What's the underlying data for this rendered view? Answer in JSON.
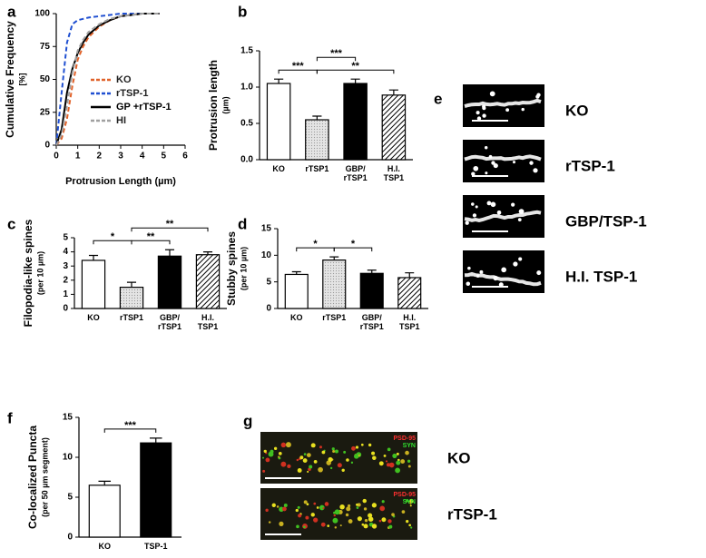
{
  "chart_data": [
    {
      "type": "line",
      "label": "a",
      "x": [
        0,
        0.25,
        0.5,
        0.75,
        1,
        1.25,
        1.5,
        2,
        2.5,
        3,
        3.5,
        4,
        4.8
      ],
      "series": [
        {
          "name": "KO",
          "color": "#e0622a",
          "dash": true,
          "values": [
            0,
            5,
            20,
            45,
            65,
            75,
            82,
            90,
            95,
            98,
            99,
            100,
            100
          ]
        },
        {
          "name": "rTSP-1",
          "color": "#1f4fd1",
          "dash": true,
          "values": [
            0,
            40,
            78,
            92,
            95,
            96,
            97,
            98,
            99,
            100,
            100,
            100,
            100
          ]
        },
        {
          "name": "GP +rTSP-1",
          "color": "#000000",
          "dash": false,
          "values": [
            0,
            12,
            40,
            58,
            70,
            78,
            84,
            91,
            95,
            98,
            99,
            100,
            100
          ]
        },
        {
          "name": "HI",
          "color": "#a0a0a0",
          "dash": true,
          "values": [
            0,
            8,
            30,
            55,
            72,
            80,
            86,
            92,
            96,
            98,
            99,
            100,
            100
          ]
        }
      ],
      "xlabel": "Protrusion Length (µm)",
      "ylabel": "Cumulative Frequency",
      "ylabel_unit": "[%]",
      "xlim": [
        0,
        6
      ],
      "xticks": [
        0,
        1,
        2,
        3,
        4,
        5,
        6
      ],
      "ylim": [
        0,
        100
      ],
      "yticks": [
        0,
        25,
        50,
        75,
        100
      ]
    },
    {
      "type": "bar",
      "label": "b",
      "categories": [
        "KO",
        "rTSP1",
        "GBP/\nrTSP1",
        "H.I.\nTSP1"
      ],
      "values": [
        1.05,
        0.55,
        1.05,
        0.89
      ],
      "errors": [
        0.06,
        0.05,
        0.06,
        0.07
      ],
      "fills": [
        "white",
        "dots",
        "black",
        "hatch"
      ],
      "ylabel": "Protrusion length",
      "ylabel_unit": "(µm)",
      "ylim": [
        0,
        1.5
      ],
      "yticks": [
        {
          "value": 0,
          "label": "0.0"
        },
        0.5,
        {
          "value": 1,
          "label": "1.0"
        },
        1.5
      ],
      "significance": [
        {
          "from": 0,
          "to": 1,
          "text": "***"
        },
        {
          "from": 1,
          "to": 3,
          "text": "**"
        },
        {
          "from": 1,
          "to": 2,
          "text": "***"
        }
      ]
    },
    {
      "type": "bar",
      "label": "c",
      "categories": [
        "KO",
        "rTSP1",
        "GBP/\nrTSP1",
        "H.I.\nTSP1"
      ],
      "values": [
        3.4,
        1.5,
        3.7,
        3.8
      ],
      "errors": [
        0.35,
        0.35,
        0.45,
        0.2
      ],
      "fills": [
        "white",
        "dots",
        "black",
        "hatch"
      ],
      "ylabel": "Filopodia-like spines",
      "ylabel_unit": "(per 10 µm)",
      "ylim": [
        0,
        5
      ],
      "yticks": [
        0,
        1,
        2,
        3,
        4,
        5
      ],
      "significance": [
        {
          "from": 0,
          "to": 1,
          "text": "*"
        },
        {
          "from": 1,
          "to": 2,
          "text": "**"
        },
        {
          "from": 1,
          "to": 3,
          "text": "**"
        }
      ]
    },
    {
      "type": "bar",
      "label": "d",
      "categories": [
        "KO",
        "rTSP1",
        "GBP/\nrTSP1",
        "H.I.\nTSP1"
      ],
      "values": [
        6.4,
        9.1,
        6.6,
        5.8
      ],
      "errors": [
        0.5,
        0.6,
        0.6,
        0.9
      ],
      "fills": [
        "white",
        "dots",
        "black",
        "hatch"
      ],
      "ylabel": "Stubby spines",
      "ylabel_unit": "(per 10 µm)",
      "ylim": [
        0,
        15
      ],
      "yticks": [
        0,
        5,
        10,
        15
      ],
      "significance": [
        {
          "from": 0,
          "to": 1,
          "text": "*"
        },
        {
          "from": 1,
          "to": 2,
          "text": "*"
        }
      ]
    },
    {
      "type": "bar",
      "label": "f",
      "categories": [
        "KO",
        "TSP-1"
      ],
      "values": [
        6.5,
        11.8
      ],
      "errors": [
        0.5,
        0.6
      ],
      "fills": [
        "white",
        "black"
      ],
      "ylabel": "Co-localized Puncta",
      "ylabel_unit": "(per 50 µm segment)",
      "ylim": [
        0,
        15
      ],
      "yticks": [
        0,
        5,
        10,
        15
      ],
      "significance": [
        {
          "from": 0,
          "to": 1,
          "text": "***"
        }
      ]
    }
  ],
  "images": [
    {
      "label": "e",
      "captions": [
        "KO",
        "rTSP-1",
        "GBP/TSP-1",
        "H.I. TSP-1"
      ]
    },
    {
      "label": "g",
      "channels": [
        "PSD-95",
        "SYN"
      ],
      "captions": [
        "KO",
        "rTSP-1"
      ]
    }
  ]
}
